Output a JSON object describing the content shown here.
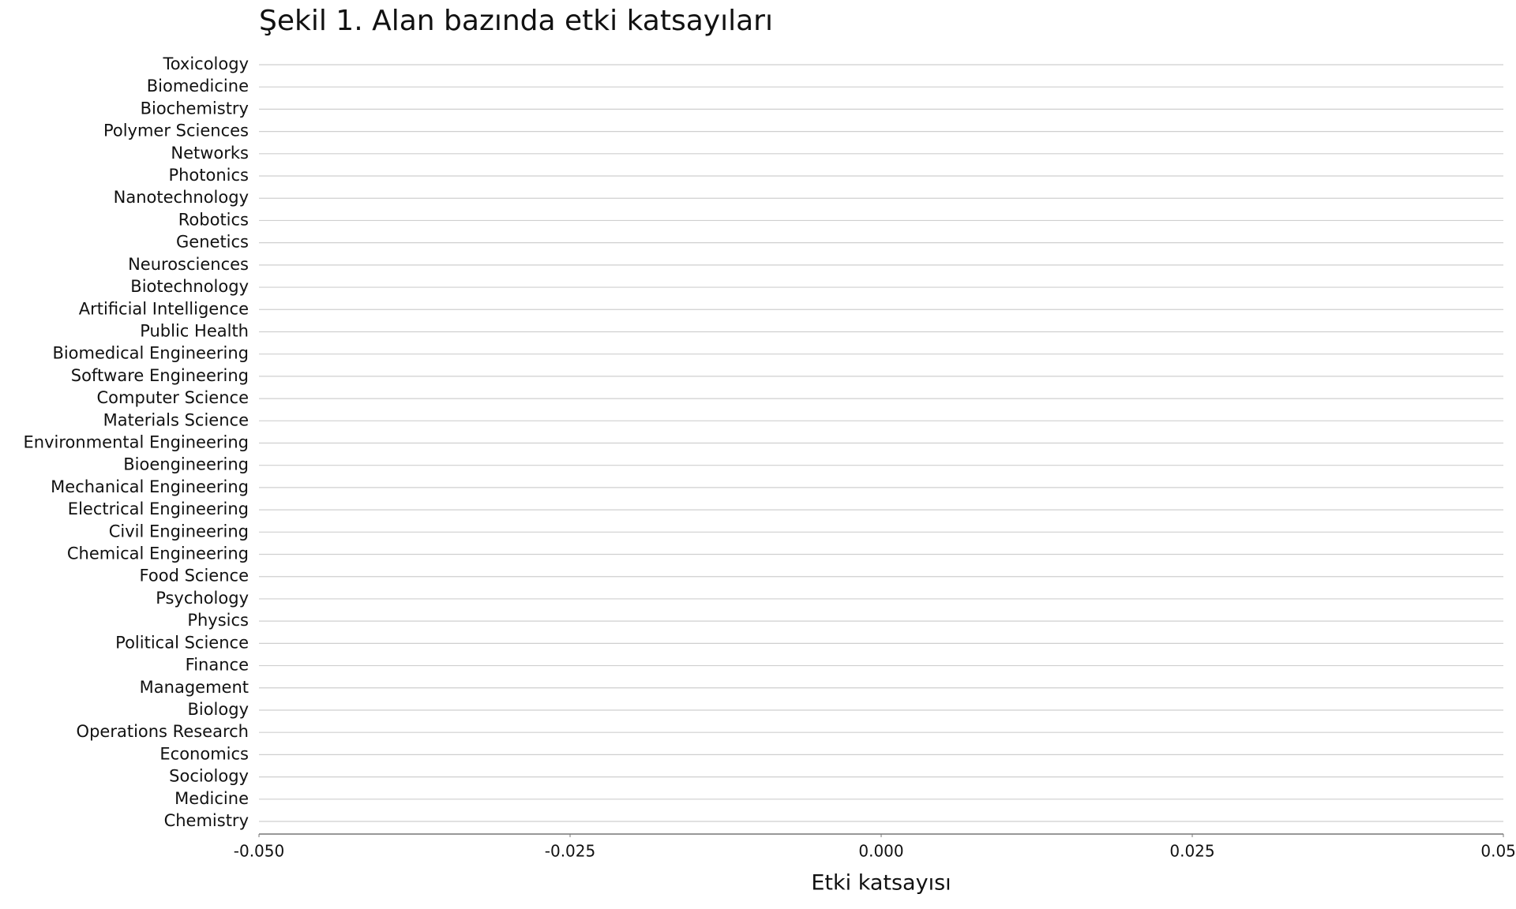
{
  "chart_data": {
    "type": "barh",
    "title": "Şekil 1. Alan bazında etki katsayıları",
    "xlabel": "Etki katsayısı",
    "categories": [
      "Toxicology",
      "Biomedicine",
      "Biochemistry",
      "Polymer Sciences",
      "Networks",
      "Photonics",
      "Nanotechnology",
      "Robotics",
      "Genetics",
      "Neurosciences",
      "Biotechnology",
      "Artificial Intelligence",
      "Public Health",
      "Biomedical Engineering",
      "Software Engineering",
      "Computer Science",
      "Materials Science",
      "Environmental Engineering",
      "Bioengineering",
      "Mechanical Engineering",
      "Electrical Engineering",
      "Civil Engineering",
      "Chemical Engineering",
      "Food Science",
      "Psychology",
      "Physics",
      "Political Science",
      "Finance",
      "Management",
      "Biology",
      "Operations Research",
      "Economics",
      "Sociology",
      "Medicine",
      "Chemistry"
    ],
    "values": [
      0,
      0,
      0,
      0,
      0,
      0,
      0,
      0,
      0,
      0,
      0,
      0,
      0,
      0,
      0,
      0,
      0,
      0,
      0,
      0,
      0,
      0,
      0,
      0,
      0,
      0,
      0,
      0,
      0,
      0,
      0,
      0,
      0,
      0,
      0
    ],
    "color": "#4c72b0",
    "xlim": [
      -0.05,
      0.05
    ],
    "xticks": [
      {
        "value": -0.05,
        "label": "-0.050"
      },
      {
        "value": -0.025,
        "label": "-0.025"
      },
      {
        "value": 0,
        "label": "0.000"
      },
      {
        "value": 0.025,
        "label": "0.025"
      },
      {
        "value": 0.05,
        "label": "0.050"
      }
    ],
    "grid": true
  }
}
